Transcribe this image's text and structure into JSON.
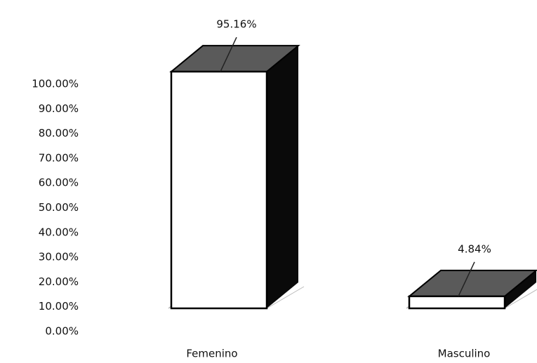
{
  "chart_data": {
    "type": "bar3d",
    "categories": [
      "Femenino",
      "Masculino"
    ],
    "values": [
      95.16,
      4.84
    ],
    "value_labels": [
      "95.16%",
      "4.84%"
    ],
    "colors": {
      "front": "#ffffff",
      "top": "#5a5a5a",
      "side": "#0a0a0a"
    },
    "ylim": [
      0,
      100
    ],
    "yticks": [
      {
        "value": 0,
        "label": "0.00%"
      },
      {
        "value": 10,
        "label": "10.00%"
      },
      {
        "value": 20,
        "label": "20.00%"
      },
      {
        "value": 30,
        "label": "30.00%"
      },
      {
        "value": 40,
        "label": "40.00%"
      },
      {
        "value": 50,
        "label": "50.00%"
      },
      {
        "value": 60,
        "label": "60.00%"
      },
      {
        "value": 70,
        "label": "70.00%"
      },
      {
        "value": 80,
        "label": "80.00%"
      },
      {
        "value": 90,
        "label": "90.00%"
      },
      {
        "value": 100,
        "label": "100.00%"
      }
    ],
    "grid": false
  }
}
